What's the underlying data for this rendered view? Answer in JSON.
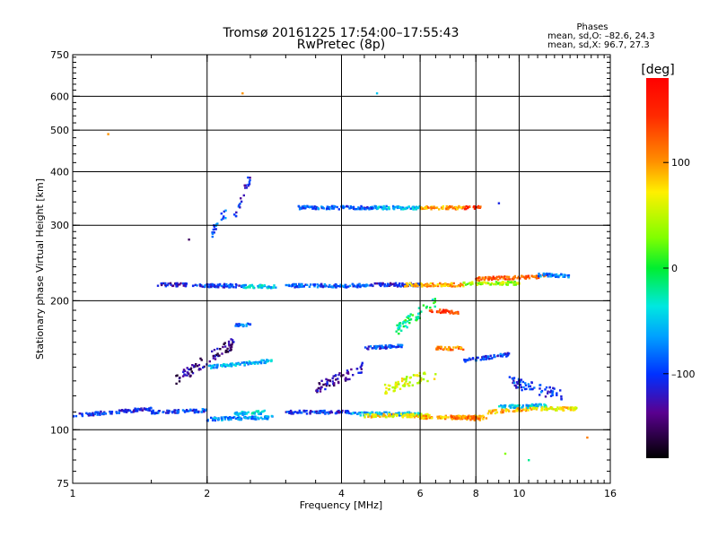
{
  "title": {
    "line1": "Tromsø 20161225 17:54:00–17:55:43",
    "line2": "RwPretec (8p)"
  },
  "stats": {
    "heading": "Phases",
    "o_line": "mean, sd,O: –82.6, 24.3",
    "x_line": "mean, sd,X:  96.7, 27.3"
  },
  "colorbar": {
    "unit": "[deg]",
    "min": -180,
    "max": 180,
    "ticks": [
      {
        "value": 100,
        "label": "100"
      },
      {
        "value": 0,
        "label": "0"
      },
      {
        "value": -100,
        "label": "–100"
      }
    ]
  },
  "chart_data": {
    "type": "scatter",
    "title": "Tromsø 20161225 17:54:00–17:55:43",
    "subtitle": "RwPretec (8p)",
    "xlabel": "Frequency [MHz]",
    "ylabel": "Stationary phase Virtual Height [km]",
    "xscale": "log",
    "yscale": "log",
    "xlim": [
      1,
      16
    ],
    "ylim": [
      75,
      750
    ],
    "xticks": [
      1,
      2,
      4,
      6,
      8,
      10,
      16
    ],
    "yticks": [
      75,
      100,
      200,
      300,
      400,
      500,
      600,
      750
    ],
    "xgrid": [
      2,
      4,
      6,
      8,
      10
    ],
    "ygrid": [
      100,
      200,
      300,
      400,
      500,
      600
    ],
    "color_variable": "phase [deg]",
    "traces": [
      {
        "f": [
          1.0,
          1.5
        ],
        "h": [
          108,
          112
        ],
        "phase": -105
      },
      {
        "f": [
          1.5,
          2.0
        ],
        "h": [
          110,
          111
        ],
        "phase": -95
      },
      {
        "f": [
          2.0,
          2.8
        ],
        "h": [
          106,
          107
        ],
        "phase": -70
      },
      {
        "f": [
          2.3,
          2.7
        ],
        "h": [
          109,
          110
        ],
        "phase": -50
      },
      {
        "f": [
          3.0,
          4.2
        ],
        "h": [
          110,
          110
        ],
        "phase": -105
      },
      {
        "f": [
          4.2,
          6.0
        ],
        "h": [
          109,
          109
        ],
        "phase": -60
      },
      {
        "f": [
          4.5,
          6.3
        ],
        "h": [
          108,
          108
        ],
        "phase": 75
      },
      {
        "f": [
          6.0,
          8.5
        ],
        "h": [
          107,
          107
        ],
        "phase": 95
      },
      {
        "f": [
          7.0,
          8.3
        ],
        "h": [
          107,
          106
        ],
        "phase": 110
      },
      {
        "f": [
          8.5,
          10.5
        ],
        "h": [
          110,
          112
        ],
        "phase": 90
      },
      {
        "f": [
          9.0,
          11.5
        ],
        "h": [
          113,
          114
        ],
        "phase": -50
      },
      {
        "f": [
          10.5,
          13.5
        ],
        "h": [
          112,
          112
        ],
        "phase": 70
      },
      {
        "f": [
          1.55,
          1.8
        ],
        "h": [
          218,
          218
        ],
        "phase": -120
      },
      {
        "f": [
          1.85,
          2.4
        ],
        "h": [
          217,
          217
        ],
        "phase": -100
      },
      {
        "f": [
          2.4,
          2.85
        ],
        "h": [
          216,
          216
        ],
        "phase": -50
      },
      {
        "f": [
          3.0,
          4.6
        ],
        "h": [
          217,
          217
        ],
        "phase": -90
      },
      {
        "f": [
          4.6,
          6.0
        ],
        "h": [
          218,
          218
        ],
        "phase": -115
      },
      {
        "f": [
          5.5,
          7.5
        ],
        "h": [
          218,
          218
        ],
        "phase": 95
      },
      {
        "f": [
          7.5,
          10.0
        ],
        "h": [
          220,
          220
        ],
        "phase": 40
      },
      {
        "f": [
          8.0,
          11.5
        ],
        "h": [
          225,
          228
        ],
        "phase": 125
      },
      {
        "f": [
          11.0,
          13.0
        ],
        "h": [
          230,
          229
        ],
        "phase": -80
      },
      {
        "f": [
          3.2,
          4.8
        ],
        "h": [
          330,
          330
        ],
        "phase": -90
      },
      {
        "f": [
          4.8,
          6.0
        ],
        "h": [
          330,
          330
        ],
        "phase": -60
      },
      {
        "f": [
          6.0,
          7.5
        ],
        "h": [
          330,
          330
        ],
        "phase": 100
      },
      {
        "f": [
          7.5,
          8.2
        ],
        "h": [
          330,
          330
        ],
        "phase": 140
      },
      {
        "f": [
          2.05,
          2.2
        ],
        "h": [
          290,
          320
        ],
        "phase": -90
      },
      {
        "f": [
          2.3,
          2.5
        ],
        "h": [
          310,
          390
        ],
        "phase": -110
      },
      {
        "f": [
          5.3,
          6.5
        ],
        "h": [
          170,
          200
        ],
        "phase": -10
      },
      {
        "f": [
          6.3,
          7.3
        ],
        "h": [
          190,
          188
        ],
        "phase": 140
      },
      {
        "f": [
          4.5,
          5.5
        ],
        "h": [
          155,
          157
        ],
        "phase": -100
      },
      {
        "f": [
          6.5,
          7.5
        ],
        "h": [
          155,
          155
        ],
        "phase": 110
      },
      {
        "f": [
          1.7,
          2.3
        ],
        "h": [
          130,
          160
        ],
        "phase": -140
      },
      {
        "f": [
          2.0,
          2.8
        ],
        "h": [
          140,
          145
        ],
        "phase": -60
      },
      {
        "f": [
          2.3,
          2.5
        ],
        "h": [
          176,
          176
        ],
        "phase": -80
      },
      {
        "f": [
          3.5,
          4.5
        ],
        "h": [
          125,
          140
        ],
        "phase": -130
      },
      {
        "f": [
          5.0,
          6.5
        ],
        "h": [
          125,
          135
        ],
        "phase": 60
      },
      {
        "f": [
          7.5,
          9.5
        ],
        "h": [
          145,
          150
        ],
        "phase": -100
      },
      {
        "f": [
          9.5,
          12.5
        ],
        "h": [
          130,
          120
        ],
        "phase": -100
      }
    ],
    "isolated_points": [
      {
        "f": 2.4,
        "h": 610,
        "phase": 100
      },
      {
        "f": 4.8,
        "h": 610,
        "phase": -50
      },
      {
        "f": 1.2,
        "h": 490,
        "phase": 100
      },
      {
        "f": 10.5,
        "h": 85,
        "phase": -20
      },
      {
        "f": 9.3,
        "h": 88,
        "phase": 30
      },
      {
        "f": 14.2,
        "h": 96,
        "phase": 110
      },
      {
        "f": 1.82,
        "h": 278,
        "phase": -150
      },
      {
        "f": 9.0,
        "h": 338,
        "phase": -110
      }
    ]
  }
}
